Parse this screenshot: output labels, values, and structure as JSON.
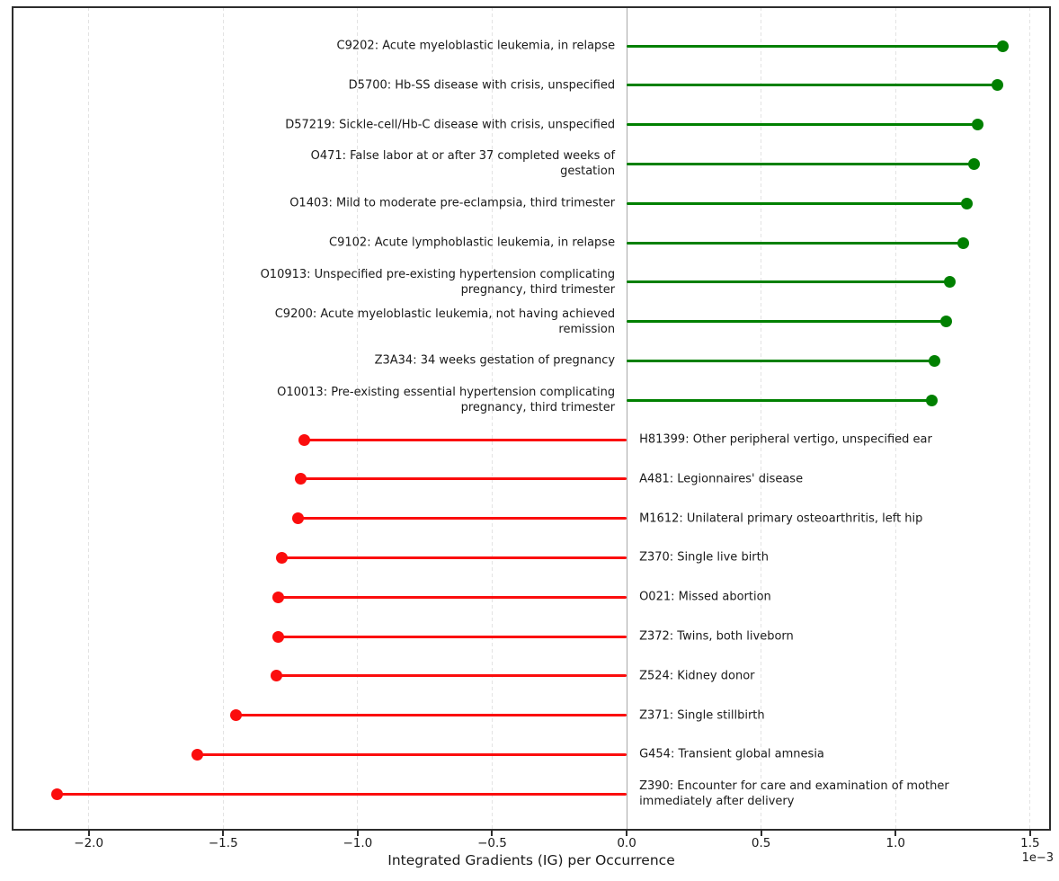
{
  "chart_data": {
    "type": "bar",
    "variant": "horizontal-lollipop-stem",
    "title": "",
    "xlabel": "Integrated Gradients (IG) per Occurrence",
    "ylabel": "",
    "offset_text": "1e−3",
    "value_unit_multiplier": 0.001,
    "xlim": [
      -2.283,
      1.574
    ],
    "xticks": [
      -2.0,
      -1.5,
      -1.0,
      -0.5,
      0.0,
      0.5,
      1.0,
      1.5
    ],
    "xtick_labels": [
      "−2.0",
      "−1.5",
      "−1.0",
      "−0.5",
      "0.0",
      "0.5",
      "1.0",
      "1.5"
    ],
    "grid": "vertical-dashed",
    "legend": "none",
    "positive_color": "#008000",
    "negative_color": "#fb0d0d",
    "zero_line_color": "#a8a8a8",
    "items": [
      {
        "label": "C9202: Acute myeloblastic leukemia, in relapse",
        "value": 1.397
      },
      {
        "label": "D5700: Hb-SS disease with crisis, unspecified",
        "value": 1.38
      },
      {
        "label": "D57219: Sickle-cell/Hb-C disease with crisis, unspecified",
        "value": 1.306
      },
      {
        "label": "O471: False labor at or after 37 completed weeks of\ngestation",
        "value": 1.293
      },
      {
        "label": "O1403: Mild to moderate pre-eclampsia, third trimester",
        "value": 1.266
      },
      {
        "label": "C9102: Acute lymphoblastic leukemia, in relapse",
        "value": 1.253
      },
      {
        "label": "O10913: Unspecified pre-existing hypertension complicating\npregnancy, third trimester",
        "value": 1.203
      },
      {
        "label": "C9200: Acute myeloblastic leukemia, not having achieved\nremission",
        "value": 1.189
      },
      {
        "label": "Z3A34: 34 weeks gestation of pregnancy",
        "value": 1.143
      },
      {
        "label": "O10013: Pre-existing essential hypertension complicating\npregnancy, third trimester",
        "value": 1.136
      },
      {
        "label": "H81399: Other peripheral vertigo, unspecified ear",
        "value": -1.199
      },
      {
        "label": "A481: Legionnaires' disease",
        "value": -1.213
      },
      {
        "label": "M1612: Unilateral primary osteoarthritis, left hip",
        "value": -1.223
      },
      {
        "label": "Z370: Single live birth",
        "value": -1.283
      },
      {
        "label": "O021: Missed abortion",
        "value": -1.296
      },
      {
        "label": "Z372: Twins, both liveborn",
        "value": -1.297
      },
      {
        "label": "Z524: Kidney donor",
        "value": -1.303
      },
      {
        "label": "Z371: Single stillbirth",
        "value": -1.453
      },
      {
        "label": "G454: Transient global amnesia",
        "value": -1.597
      },
      {
        "label": "Z390: Encounter for care and examination of mother\nimmediately after delivery",
        "value": -2.118
      }
    ]
  }
}
